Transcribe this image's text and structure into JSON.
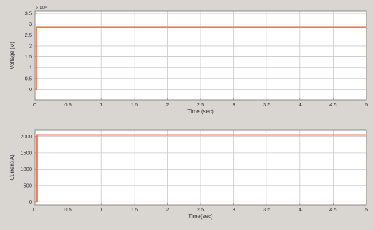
{
  "colors": {
    "figure_background": "#d9d6d1",
    "axes_background": "#ffffff",
    "grid": "#c8c8c8",
    "axes_frame": "#8c8c8c",
    "line": "#f07a4a",
    "text": "#333333"
  },
  "chart_data": [
    {
      "type": "line",
      "title": "",
      "xlabel": "Time (sec)",
      "ylabel": "Voltage (V)",
      "y_exponent_label": "x 10⁴",
      "xlim": [
        0,
        5
      ],
      "ylim": [
        -0.5,
        3.6
      ],
      "xticks": [
        "0",
        "0.5",
        "1",
        "1.5",
        "2",
        "2.5",
        "3",
        "3.5",
        "4",
        "4.5",
        "5"
      ],
      "yticks": [
        "0",
        "0.5",
        "1",
        "1.5",
        "2",
        "2.5",
        "3",
        "3.5"
      ],
      "grid": true,
      "series": [
        {
          "color": "#f07a4a",
          "x": [
            0,
            0.02,
            0.02,
            5
          ],
          "y": [
            0,
            0,
            2.85,
            2.85
          ]
        }
      ]
    },
    {
      "type": "line",
      "title": "",
      "xlabel": "Time(sec)",
      "ylabel": "Current(A)",
      "xlim": [
        0,
        5
      ],
      "ylim": [
        -100,
        2200
      ],
      "xticks": [
        "0",
        "0.5",
        "1",
        "1.5",
        "2",
        "2.5",
        "3",
        "3.5",
        "4",
        "4.5",
        "5"
      ],
      "yticks": [
        "0",
        "500",
        "1000",
        "1500",
        "2000"
      ],
      "grid": true,
      "series": [
        {
          "color": "#f07a4a",
          "x": [
            0,
            0.03,
            0.03,
            5
          ],
          "y": [
            0,
            0,
            2040,
            2040
          ]
        }
      ]
    }
  ]
}
